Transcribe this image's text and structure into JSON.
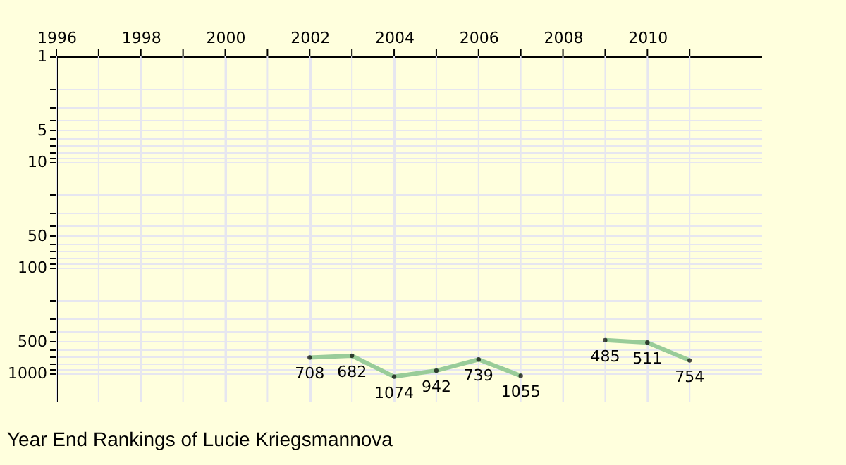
{
  "chart_data": {
    "type": "line",
    "title": "Year End Rankings of  Lucie Kriegsmannova",
    "x": [
      2002,
      2003,
      2004,
      2005,
      2006,
      2007,
      2008,
      2009,
      2010,
      2011
    ],
    "series": [
      {
        "color": "#99cc99",
        "values": [
          708,
          682,
          1074,
          942,
          739,
          1055,
          null,
          485,
          511,
          754
        ]
      }
    ],
    "xlim": [
      1996,
      2012.7
    ],
    "xticks": [
      1996,
      {
        "value": 1997,
        "label": null
      },
      1998,
      {
        "value": 1999,
        "label": null
      },
      2000,
      {
        "value": 2001,
        "label": null
      },
      2002,
      {
        "value": 2003,
        "label": null
      },
      2004,
      {
        "value": 2005,
        "label": null
      },
      2006,
      {
        "value": 2007,
        "label": null
      },
      2008,
      {
        "value": 2009,
        "label": null
      },
      2010,
      {
        "value": 2011,
        "label": null
      }
    ],
    "ylim": [
      1850,
      1
    ],
    "yticks": [
      1,
      {
        "value": 2,
        "label": null
      },
      {
        "value": 3,
        "label": null
      },
      {
        "value": 4,
        "label": null
      },
      5,
      {
        "value": 6,
        "label": null
      },
      {
        "value": 7,
        "label": null
      },
      {
        "value": 8,
        "label": null
      },
      {
        "value": 9,
        "label": null
      },
      10,
      {
        "value": 20,
        "label": null
      },
      {
        "value": 30,
        "label": null
      },
      {
        "value": 40,
        "label": null
      },
      50,
      {
        "value": 60,
        "label": null
      },
      {
        "value": 70,
        "label": null
      },
      {
        "value": 80,
        "label": null
      },
      {
        "value": 90,
        "label": null
      },
      100,
      {
        "value": 200,
        "label": null
      },
      {
        "value": 300,
        "label": null
      },
      {
        "value": 400,
        "label": null
      },
      500,
      {
        "value": 600,
        "label": null
      },
      {
        "value": 700,
        "label": null
      },
      {
        "value": 800,
        "label": null
      },
      {
        "value": 900,
        "label": null
      },
      1000
    ],
    "log": "y",
    "grid": true,
    "marker": "circle",
    "line_style": "solid",
    "data_labels": true,
    "legend": false
  }
}
